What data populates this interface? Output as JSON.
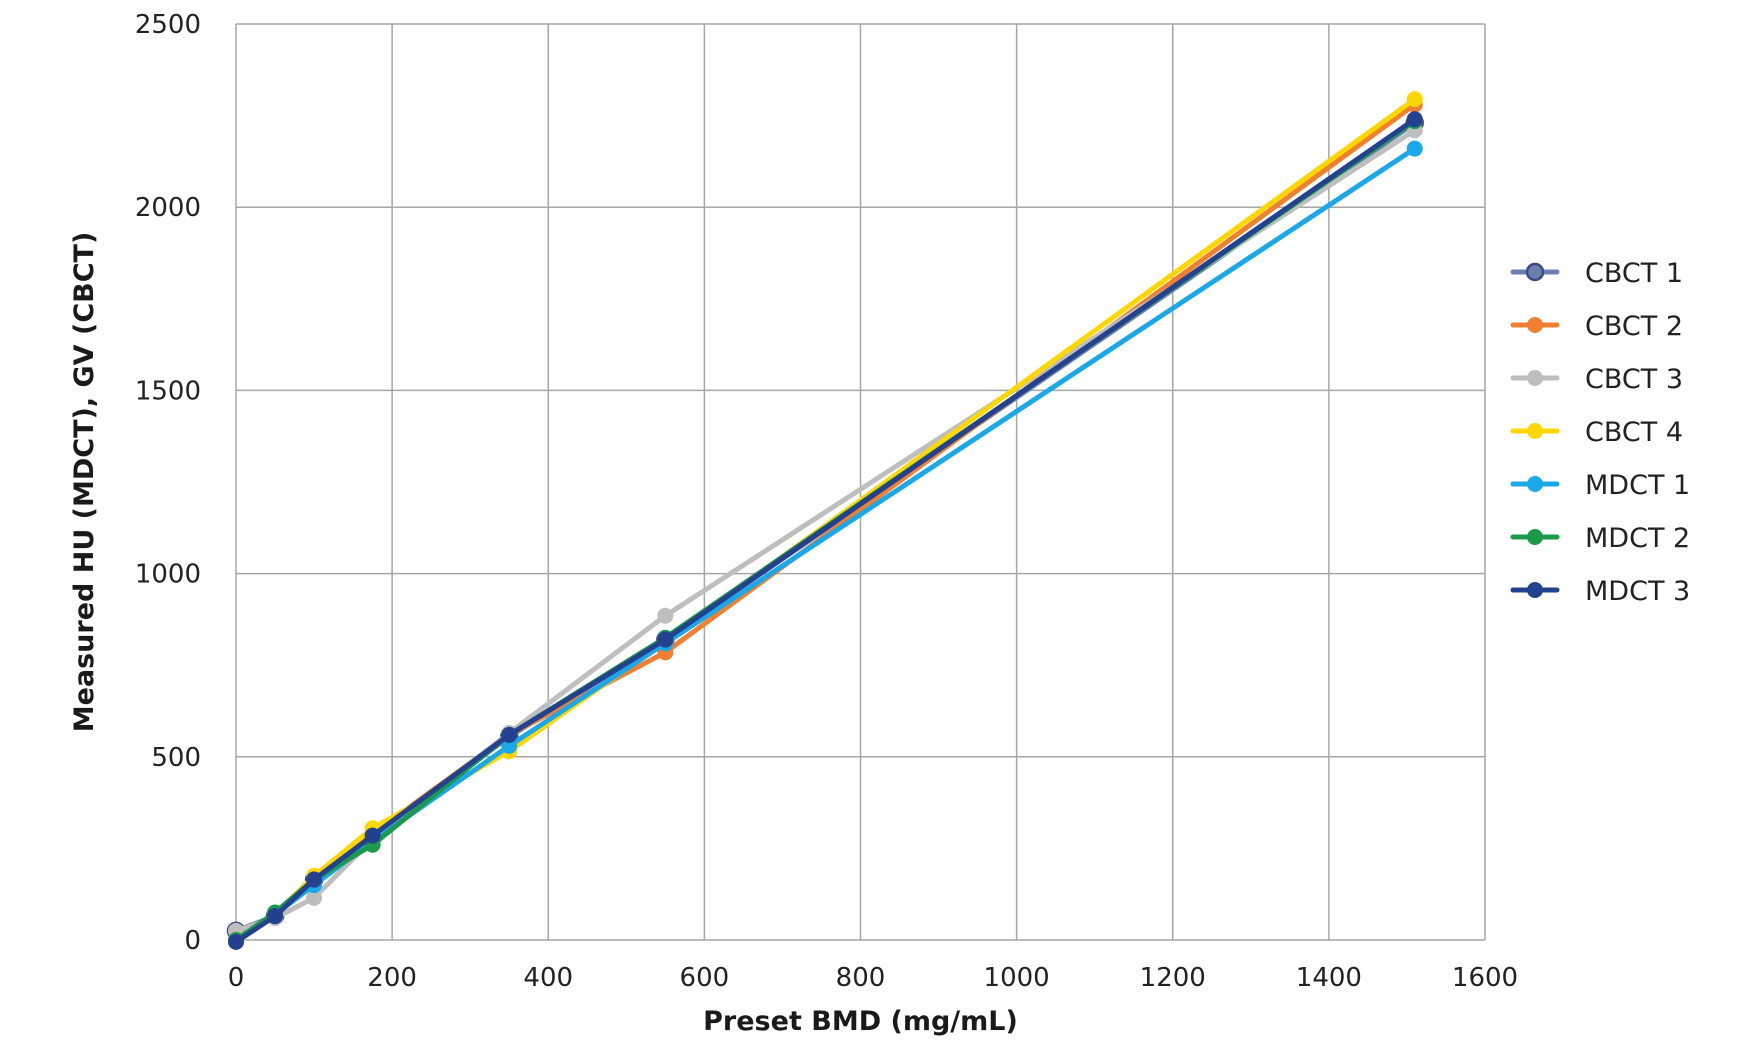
{
  "chart_data": {
    "type": "line",
    "title": "",
    "xlabel": "Preset BMD (mg/mL)",
    "ylabel": "Measured HU (MDCT), GV (CBCT)",
    "xlim": [
      0,
      1600
    ],
    "ylim": [
      0,
      2500
    ],
    "xticks": [
      0,
      200,
      400,
      600,
      800,
      1000,
      1200,
      1400,
      1600
    ],
    "yticks": [
      0,
      500,
      1000,
      1500,
      2000,
      2500
    ],
    "grid": true,
    "legend_position": "right",
    "x": [
      0,
      50,
      100,
      175,
      350,
      550,
      1510
    ],
    "series": [
      {
        "name": "CBCT 1",
        "color": "#6b7fae",
        "values": [
          25,
          65,
          165,
          280,
          555,
          820,
          2230
        ]
      },
      {
        "name": "CBCT 2",
        "color": "#f08030",
        "values": [
          0,
          65,
          165,
          290,
          560,
          785,
          2280
        ]
      },
      {
        "name": "CBCT 3",
        "color": "#bebebe",
        "values": [
          25,
          60,
          115,
          275,
          565,
          885,
          2210
        ]
      },
      {
        "name": "CBCT 4",
        "color": "#ffd700",
        "values": [
          0,
          70,
          175,
          305,
          515,
          815,
          2295
        ]
      },
      {
        "name": "MDCT 1",
        "color": "#1aa8e8",
        "values": [
          0,
          70,
          150,
          270,
          530,
          810,
          2160
        ]
      },
      {
        "name": "MDCT 2",
        "color": "#1a9a4a",
        "values": [
          0,
          75,
          165,
          260,
          560,
          825,
          2235
        ]
      },
      {
        "name": "MDCT 3",
        "color": "#24418f",
        "values": [
          -5,
          65,
          165,
          285,
          560,
          820,
          2240
        ]
      }
    ]
  }
}
